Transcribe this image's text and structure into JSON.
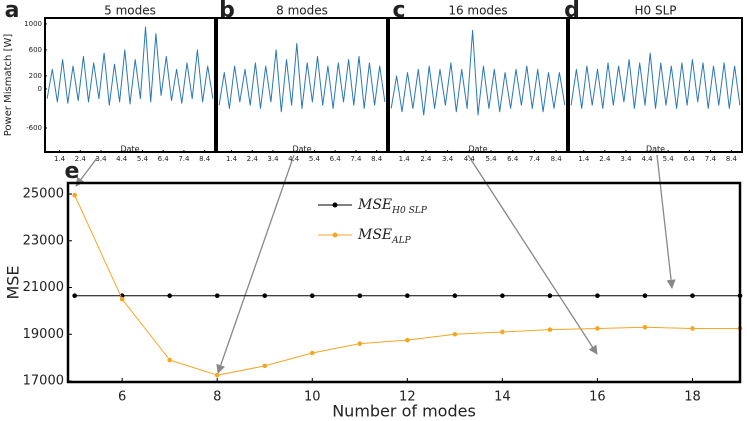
{
  "chart_data": [
    {
      "type": "line",
      "letter": "a",
      "title": "5 modes",
      "ylabel": "Power Mismatch  [W]",
      "xlabel": "Date",
      "color": "#2b78b5",
      "x": [
        0.8,
        1.05,
        1.3,
        1.55,
        1.8,
        2.05,
        2.3,
        2.55,
        2.8,
        3.05,
        3.3,
        3.55,
        3.8,
        4.05,
        4.3,
        4.55,
        4.8,
        5.05,
        5.3,
        5.55,
        5.8,
        6.05,
        6.3,
        6.55,
        6.8,
        7.05,
        7.3,
        7.55,
        7.8,
        8.05,
        8.3,
        8.55,
        8.8
      ],
      "values": [
        -150,
        300,
        -200,
        450,
        -220,
        350,
        -180,
        500,
        -200,
        400,
        -150,
        550,
        -250,
        380,
        -200,
        600,
        -230,
        450,
        -150,
        950,
        -200,
        850,
        -100,
        500,
        -180,
        300,
        -220,
        400,
        -150,
        600,
        -200,
        350,
        -150
      ],
      "xlim": [
        0.7,
        8.9
      ],
      "ylim": [
        -970,
        1090
      ],
      "xticks": [
        1.4,
        2.4,
        3.4,
        4.4,
        5.4,
        6.4,
        7.4,
        8.4
      ],
      "yticks": [
        -600,
        0,
        200,
        600,
        1000
      ]
    },
    {
      "type": "line",
      "letter": "b",
      "title": "8 modes",
      "xlabel": "Date",
      "color": "#2b78b5",
      "x": [
        0.8,
        1.05,
        1.3,
        1.55,
        1.8,
        2.05,
        2.3,
        2.55,
        2.8,
        3.05,
        3.3,
        3.55,
        3.8,
        4.05,
        4.3,
        4.55,
        4.8,
        5.05,
        5.3,
        5.55,
        5.8,
        6.05,
        6.3,
        6.55,
        6.8,
        7.05,
        7.3,
        7.55,
        7.8,
        8.05,
        8.3,
        8.55,
        8.8
      ],
      "values": [
        -250,
        250,
        -300,
        350,
        -200,
        300,
        -250,
        400,
        -300,
        350,
        -200,
        600,
        -350,
        450,
        -250,
        700,
        -300,
        400,
        -200,
        500,
        -250,
        350,
        -300,
        400,
        -200,
        450,
        -250,
        500,
        -300,
        400,
        -250,
        350,
        -200
      ],
      "xlim": [
        0.7,
        8.9
      ],
      "ylim": [
        -970,
        1090
      ],
      "xticks": [
        1.4,
        2.4,
        3.4,
        4.4,
        5.4,
        6.4,
        7.4,
        8.4
      ]
    },
    {
      "type": "line",
      "letter": "c",
      "title": "16 modes",
      "xlabel": "Date",
      "color": "#2b78b5",
      "x": [
        0.8,
        1.05,
        1.3,
        1.55,
        1.8,
        2.05,
        2.3,
        2.55,
        2.8,
        3.05,
        3.3,
        3.55,
        3.8,
        4.05,
        4.3,
        4.55,
        4.8,
        5.05,
        5.3,
        5.55,
        5.8,
        6.05,
        6.3,
        6.55,
        6.8,
        7.05,
        7.3,
        7.55,
        7.8,
        8.05,
        8.3,
        8.55,
        8.8
      ],
      "values": [
        -300,
        200,
        -350,
        250,
        -300,
        300,
        -400,
        350,
        -300,
        300,
        -250,
        400,
        -350,
        300,
        -300,
        900,
        -400,
        350,
        -300,
        300,
        -350,
        250,
        -300,
        300,
        -250,
        350,
        -300,
        300,
        -350,
        250,
        -300,
        250,
        -250
      ],
      "xlim": [
        0.7,
        8.9
      ],
      "ylim": [
        -970,
        1090
      ],
      "xticks": [
        1.4,
        2.4,
        3.4,
        4.4,
        5.4,
        6.4,
        7.4,
        8.4
      ]
    },
    {
      "type": "line",
      "letter": "d",
      "title": "H0 SLP",
      "xlabel": "Date",
      "color": "#2b78b5",
      "x": [
        0.8,
        1.05,
        1.3,
        1.55,
        1.8,
        2.05,
        2.3,
        2.55,
        2.8,
        3.05,
        3.3,
        3.55,
        3.8,
        4.05,
        4.3,
        4.55,
        4.8,
        5.05,
        5.3,
        5.55,
        5.8,
        6.05,
        6.3,
        6.55,
        6.8,
        7.05,
        7.3,
        7.55,
        7.8,
        8.05,
        8.3,
        8.55,
        8.8
      ],
      "values": [
        -250,
        300,
        -300,
        350,
        -250,
        300,
        -300,
        400,
        -250,
        350,
        -200,
        450,
        -300,
        400,
        -250,
        550,
        -300,
        400,
        -250,
        350,
        -300,
        400,
        -250,
        450,
        -200,
        400,
        -300,
        350,
        -250,
        400,
        -300,
        350,
        -250
      ],
      "xlim": [
        0.7,
        8.9
      ],
      "ylim": [
        -970,
        1090
      ],
      "xticks": [
        1.4,
        2.4,
        3.4,
        4.4,
        5.4,
        6.4,
        7.4,
        8.4
      ]
    },
    {
      "type": "line",
      "letter": "e",
      "ylabel": "MSE",
      "xlabel": "Number of modes",
      "x": [
        5,
        6,
        7,
        8,
        9,
        10,
        11,
        12,
        13,
        14,
        15,
        16,
        17,
        18,
        19
      ],
      "series": [
        {
          "name": "MSE",
          "name_subscript": "H0 SLP",
          "color": "#000000",
          "values": [
            20650,
            20650,
            20650,
            20650,
            20650,
            20650,
            20650,
            20650,
            20650,
            20650,
            20650,
            20650,
            20650,
            20650,
            20650
          ]
        },
        {
          "name": "MSE",
          "name_subscript": "ALP",
          "color": "#f5a623",
          "values": [
            24950,
            20500,
            17900,
            17250,
            17650,
            18200,
            18600,
            18750,
            19000,
            19100,
            19200,
            19250,
            19300,
            19250,
            19250
          ]
        }
      ],
      "xlim": [
        4.86,
        19.0
      ],
      "ylim": [
        16960,
        25470
      ],
      "xticks": [
        6,
        8,
        10,
        12,
        14,
        16,
        18
      ],
      "yticks": [
        17000,
        19000,
        21000,
        23000,
        25000
      ]
    }
  ]
}
